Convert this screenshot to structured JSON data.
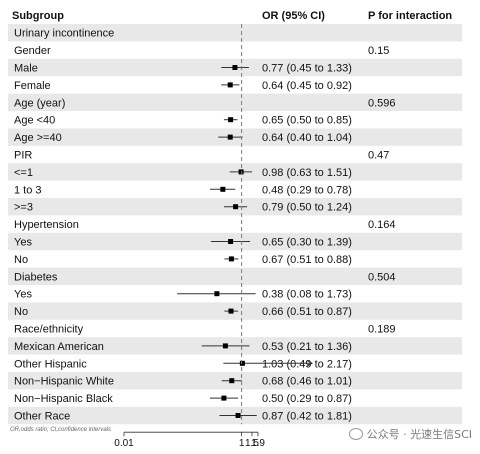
{
  "header": {
    "subgroup": "Subgroup",
    "or": "OR (95% CI)",
    "p": "P for interaction"
  },
  "footnote": "OR,odds ratio; CI,confidence intervals",
  "watermark": "公众号 · 光速生信SCI",
  "chart_data": {
    "type": "forest",
    "xscale": "log",
    "xlim": [
      0.01,
      1.9
    ],
    "xticks": [
      "0.01",
      "1",
      "1.5",
      "1.9"
    ],
    "xtick_values": [
      0.01,
      1,
      1.5,
      1.9
    ],
    "reference_line": 1,
    "colors": {
      "shade": "#e8e8e8",
      "refline": "#d9534f",
      "line": "#333333"
    },
    "rows": [
      {
        "label": "Urinary incontinence",
        "or_text": "",
        "p": "",
        "shaded": true
      },
      {
        "label": "Gender",
        "or_text": "",
        "p": "0.15",
        "shaded": false
      },
      {
        "label": "Male",
        "or_text": "0.77 (0.45 to 1.33)",
        "p": "",
        "or": 0.77,
        "lo": 0.45,
        "hi": 1.33,
        "shaded": true
      },
      {
        "label": "Female",
        "or_text": "0.64 (0.45 to 0.92)",
        "p": "",
        "or": 0.64,
        "lo": 0.45,
        "hi": 0.92,
        "shaded": false
      },
      {
        "label": "Age  (year)",
        "or_text": "",
        "p": "0.596",
        "shaded": true
      },
      {
        "label": "Age <40",
        "or_text": "0.65 (0.50 to 0.85)",
        "p": "",
        "or": 0.65,
        "lo": 0.5,
        "hi": 0.85,
        "shaded": false
      },
      {
        "label": "Age >=40",
        "or_text": "0.64 (0.40 to 1.04)",
        "p": "",
        "or": 0.64,
        "lo": 0.4,
        "hi": 1.04,
        "shaded": true
      },
      {
        "label": "PIR",
        "or_text": "",
        "p": "0.47",
        "shaded": false
      },
      {
        "label": "<=1",
        "or_text": "0.98 (0.63 to 1.51)",
        "p": "",
        "or": 0.98,
        "lo": 0.63,
        "hi": 1.51,
        "shaded": true
      },
      {
        "label": "1 to 3",
        "or_text": "0.48 (0.29 to 0.78)",
        "p": "",
        "or": 0.48,
        "lo": 0.29,
        "hi": 0.78,
        "shaded": false
      },
      {
        "label": ">=3",
        "or_text": "0.79 (0.50 to 1.24)",
        "p": "",
        "or": 0.79,
        "lo": 0.5,
        "hi": 1.24,
        "shaded": true
      },
      {
        "label": "Hypertension",
        "or_text": "",
        "p": "0.164",
        "shaded": false
      },
      {
        "label": "Yes",
        "or_text": "0.65 (0.30 to 1.39)",
        "p": "",
        "or": 0.65,
        "lo": 0.3,
        "hi": 1.39,
        "shaded": true
      },
      {
        "label": "No",
        "or_text": "0.67 (0.51 to 0.88)",
        "p": "",
        "or": 0.67,
        "lo": 0.51,
        "hi": 0.88,
        "shaded": false
      },
      {
        "label": "Diabetes",
        "or_text": "",
        "p": "0.504",
        "shaded": true
      },
      {
        "label": "Yes",
        "or_text": "0.38 (0.08 to 1.73)",
        "p": "",
        "or": 0.38,
        "lo": 0.08,
        "hi": 1.73,
        "shaded": false
      },
      {
        "label": "No",
        "or_text": "0.66 (0.51 to 0.87)",
        "p": "",
        "or": 0.66,
        "lo": 0.51,
        "hi": 0.87,
        "shaded": true
      },
      {
        "label": "Race/ethnicity",
        "or_text": "",
        "p": "0.189",
        "shaded": false
      },
      {
        "label": "Mexican American",
        "or_text": "0.53 (0.21 to 1.36)",
        "p": "",
        "or": 0.53,
        "lo": 0.21,
        "hi": 1.36,
        "shaded": true
      },
      {
        "label": "Other Hispanic",
        "or_text": "1.03 (0.49 to 2.17)",
        "p": "",
        "or": 1.03,
        "lo": 0.49,
        "hi": 2.17,
        "arrow": true,
        "shaded": false
      },
      {
        "label": "Non−Hispanic White",
        "or_text": "0.68 (0.46 to 1.01)",
        "p": "",
        "or": 0.68,
        "lo": 0.46,
        "hi": 1.01,
        "shaded": true
      },
      {
        "label": "Non−Hispanic Black",
        "or_text": "0.50 (0.29 to 0.87)",
        "p": "",
        "or": 0.5,
        "lo": 0.29,
        "hi": 0.87,
        "shaded": false
      },
      {
        "label": "Other Race",
        "or_text": "0.87 (0.42 to 1.81)",
        "p": "",
        "or": 0.87,
        "lo": 0.42,
        "hi": 1.81,
        "shaded": true
      }
    ]
  }
}
